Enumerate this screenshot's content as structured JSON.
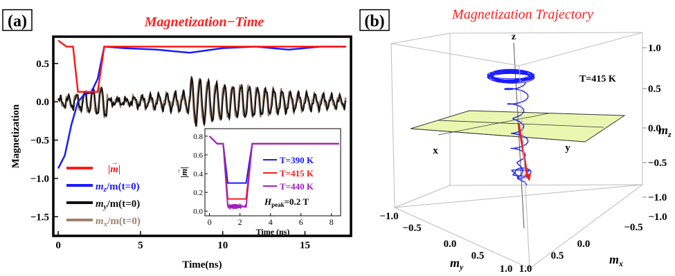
{
  "panels": {
    "a": {
      "label": "(a)",
      "title": "Magnetization−Time"
    },
    "b": {
      "label": "(b)",
      "title": "Magnetization Trajectory"
    }
  },
  "chart_data": [
    {
      "type": "line",
      "panel": "(a)",
      "title": "Magnetization−Time",
      "xlabel": "Time(ns)",
      "ylabel": "Magnetization",
      "xlim": [
        -0.3,
        17.8
      ],
      "ylim": [
        -1.75,
        0.85
      ],
      "x_ticks": [
        0,
        5,
        10,
        15
      ],
      "y_ticks": [
        0.5,
        0.0,
        -0.5,
        -1.0,
        -1.5
      ],
      "x_tick_labels": [
        "0",
        "5",
        "10",
        "15"
      ],
      "y_tick_labels": [
        "0.5",
        "0.0",
        "−0.5",
        "−1.0",
        "−1.5"
      ],
      "legend_position": "bottom-left",
      "grid": false,
      "series": [
        {
          "name": "|m⃗|",
          "color": "#ff1a1a",
          "x": [
            0,
            0.5,
            0.9,
            1.2,
            2.4,
            2.8,
            17.5
          ],
          "y": [
            0.8,
            0.72,
            0.72,
            0.13,
            0.13,
            0.72,
            0.72
          ]
        },
        {
          "name": "m_z/m(t=0)",
          "color": "#1a1aff",
          "x": [
            0,
            0.4,
            0.8,
            1.2,
            1.6,
            2.0,
            2.4,
            2.8,
            4,
            6,
            8,
            10,
            12,
            14,
            16,
            17.5
          ],
          "y": [
            -0.87,
            -0.7,
            -0.3,
            0.0,
            0.1,
            0.12,
            0.3,
            0.72,
            0.7,
            0.68,
            0.64,
            0.7,
            0.72,
            0.68,
            0.72,
            0.72
          ]
        },
        {
          "name": "m_y/m(t=0)",
          "color": "#111111",
          "model": "damped-oscillation",
          "x_start": 0,
          "x_end": 17.5,
          "approx_amplitude_max": 0.3,
          "approx_period_ns": 0.5
        },
        {
          "name": "m_x/m(t=0)",
          "color": "#a0826d",
          "model": "damped-oscillation",
          "x_start": 0,
          "x_end": 17.5,
          "approx_amplitude_max": 0.3,
          "approx_period_ns": 0.5
        }
      ]
    },
    {
      "type": "line",
      "panel": "(a) inset",
      "xlabel": "Time  (ns)",
      "ylabel": "|m⃗|",
      "xlim": [
        -0.3,
        8.6
      ],
      "ylim": [
        -0.05,
        0.88
      ],
      "x_ticks": [
        0,
        2,
        4,
        6,
        8
      ],
      "y_ticks": [
        0.0,
        0.2,
        0.4,
        0.6,
        0.8
      ],
      "x_tick_labels": [
        "0",
        "2",
        "4",
        "6",
        "8"
      ],
      "y_tick_labels": [
        "0.0",
        "0.2",
        "0.4",
        "0.6",
        "0.8"
      ],
      "annotation": "H_peak=0.2 T",
      "series": [
        {
          "name": "T=390 K",
          "color": "#1a1aff",
          "x": [
            0,
            0.5,
            0.9,
            1.2,
            2.4,
            2.8,
            8.5
          ],
          "y": [
            0.8,
            0.72,
            0.72,
            0.3,
            0.3,
            0.72,
            0.72
          ]
        },
        {
          "name": "T=415 K",
          "color": "#ff1a1a",
          "x": [
            0,
            0.5,
            0.9,
            1.2,
            2.4,
            2.8,
            8.5
          ],
          "y": [
            0.8,
            0.72,
            0.72,
            0.13,
            0.13,
            0.72,
            0.72
          ]
        },
        {
          "name": "T=440 K",
          "color": "#a020c0",
          "x": [
            0,
            0.5,
            0.9,
            1.2,
            2.4,
            2.8,
            8.5
          ],
          "y": [
            0.8,
            0.72,
            0.72,
            0.05,
            0.05,
            0.72,
            0.72
          ]
        }
      ]
    },
    {
      "type": "line",
      "panel": "(b)",
      "title": "Magnetization Trajectory",
      "annotation": "T=415 K",
      "axes_3d": {
        "x": {
          "label": "m_x",
          "ticks": [
            "−1.0",
            "−0.5",
            "0.0",
            "0.5",
            "1.0"
          ]
        },
        "y": {
          "label": "m_y",
          "ticks": [
            "−1.0",
            "−0.5",
            "0.0",
            "0.5",
            "1.0"
          ]
        },
        "z": {
          "label": "m_z",
          "ticks": [
            "1.0",
            "0.5",
            "0.0",
            "−0.5",
            "−1.0"
          ]
        },
        "axis_letters": [
          "x",
          "y",
          "z"
        ]
      },
      "colors": {
        "trajectory": "#1a1aff",
        "vector": "#e82020",
        "plane": "#eaf7b0"
      }
    }
  ]
}
